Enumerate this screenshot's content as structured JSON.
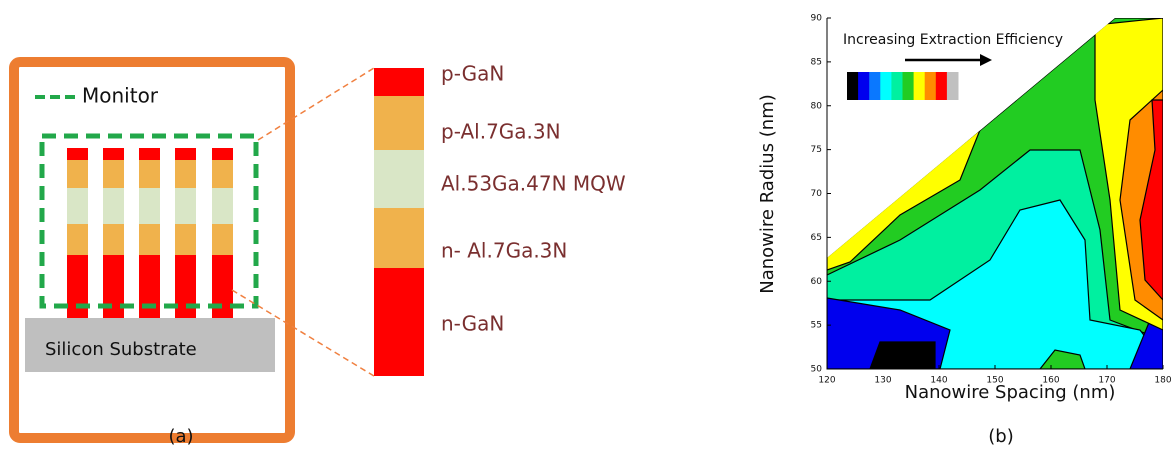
{
  "panel_a": {
    "caption": "(a)",
    "monitor_label": "Monitor",
    "substrate_label": "Silicon Substrate",
    "layers": [
      "p-GaN",
      "p-Al.7Ga.3N",
      "Al.53Ga.47N MQW",
      "n- Al.7Ga.3N",
      "n-GaN"
    ]
  },
  "panel_b": {
    "caption": "(b)",
    "xlabel": "Nanowire Spacing (nm)",
    "ylabel": "Nanowire Radius (nm)",
    "annotation": "Increasing Extraction Efficiency",
    "xlim": [
      120,
      180
    ],
    "ylim": [
      50,
      90
    ],
    "xticks": [
      120,
      130,
      140,
      150,
      160,
      170,
      180
    ],
    "yticks": [
      50,
      55,
      60,
      65,
      70,
      75,
      80,
      85,
      90
    ],
    "scale_colors": [
      "#000000",
      "#0000ee",
      "#0a78ff",
      "#00ffff",
      "#00f0a0",
      "#22cc22",
      "#ffff00",
      "#ff8c00",
      "#ff0000",
      "#c0c0c0"
    ]
  }
}
